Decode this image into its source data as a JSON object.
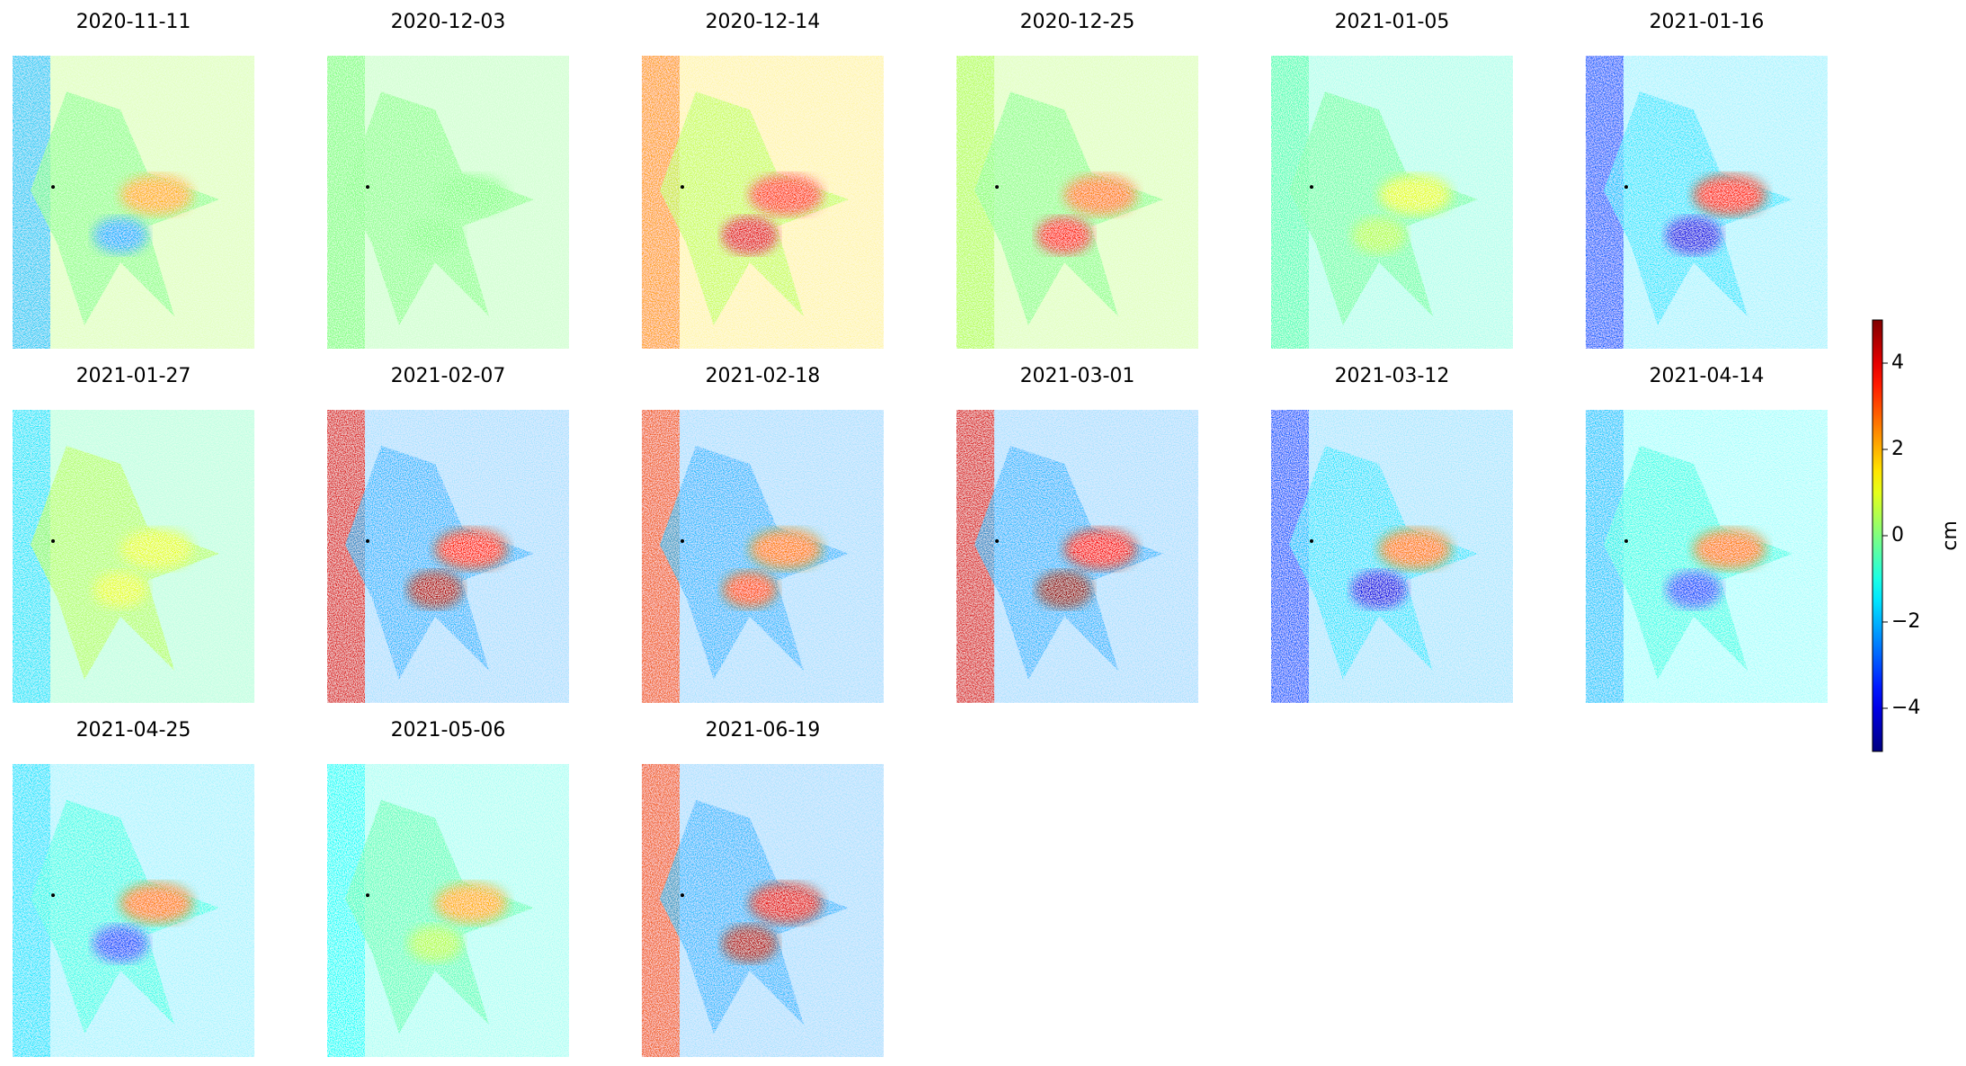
{
  "chart_data": {
    "type": "image_grid",
    "panels": [
      "2020-11-11",
      "2020-12-03",
      "2020-12-14",
      "2020-12-25",
      "2021-01-05",
      "2021-01-16",
      "2021-01-27",
      "2021-02-07",
      "2021-02-18",
      "2021-03-01",
      "2021-03-12",
      "2021-04-14",
      "2021-04-25",
      "2021-05-06",
      "2021-06-19"
    ],
    "colorbar": {
      "label": "cm",
      "colormap": "jet",
      "lim": [
        -5,
        5
      ],
      "ticks": [
        {
          "value": -4,
          "label": "−4"
        },
        {
          "value": -2,
          "label": "−2"
        },
        0,
        2,
        4
      ]
    }
  }
}
